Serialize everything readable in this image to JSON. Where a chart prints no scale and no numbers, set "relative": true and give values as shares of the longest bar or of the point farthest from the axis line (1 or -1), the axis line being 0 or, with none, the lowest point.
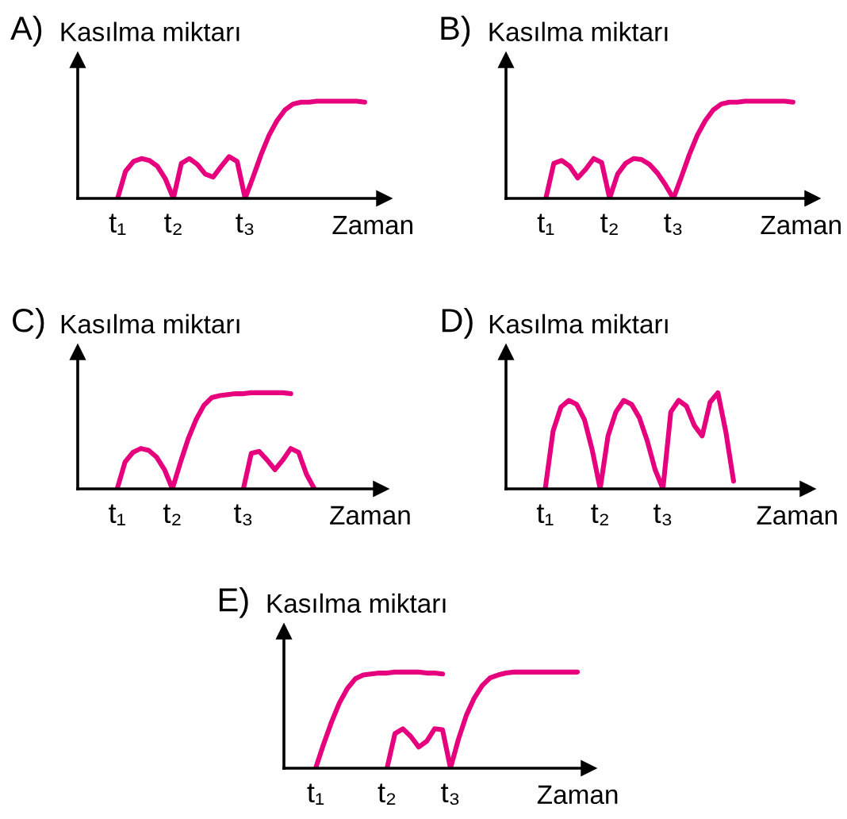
{
  "chart_data": [
    {
      "type": "line",
      "title": "A)",
      "ylabel": "Kasılma miktarı",
      "xlabel": "Zaman",
      "relative": true,
      "tick_labels": "x",
      "categories": [
        null,
        null,
        null,
        null,
        null,
        "t₁",
        null,
        null,
        null,
        null,
        null,
        null,
        "t₂",
        null,
        null,
        null,
        null,
        null,
        null,
        null,
        null,
        "t₃",
        null,
        null,
        null,
        null,
        null,
        null,
        null,
        null,
        null,
        null,
        null,
        null,
        null,
        null,
        null,
        null,
        null
      ],
      "series": [
        {
          "color": "#e6007e",
          "values": [
            null,
            null,
            null,
            null,
            null,
            0,
            0.28,
            0.38,
            0.41,
            0.39,
            0.33,
            0.2,
            0,
            0.36,
            0.41,
            0.35,
            0.25,
            0.22,
            0.33,
            0.43,
            0.38,
            0,
            0.22,
            0.45,
            0.65,
            0.8,
            0.91,
            0.97,
            0.99,
            0.99,
            1.0,
            1.0,
            1.0,
            1.0,
            1.0,
            1.0,
            0.99,
            null,
            null
          ]
        }
      ]
    },
    {
      "type": "line",
      "title": "B)",
      "ylabel": "Kasılma miktarı",
      "xlabel": "Zaman",
      "relative": true,
      "tick_labels": "x",
      "categories": [
        null,
        null,
        null,
        null,
        null,
        "t₁",
        null,
        null,
        null,
        null,
        null,
        null,
        null,
        "t₂",
        null,
        null,
        null,
        null,
        null,
        null,
        null,
        "t₃",
        null,
        null,
        null,
        null,
        null,
        null,
        null,
        null,
        null,
        null,
        null,
        null,
        null,
        null,
        null,
        null,
        null
      ],
      "series": [
        {
          "color": "#e6007e",
          "values": [
            null,
            null,
            null,
            null,
            null,
            0,
            0.36,
            0.39,
            0.33,
            0.21,
            0.3,
            0.41,
            0.37,
            0,
            0.25,
            0.36,
            0.41,
            0.4,
            0.35,
            0.26,
            0.14,
            0,
            0.22,
            0.45,
            0.65,
            0.8,
            0.91,
            0.97,
            0.99,
            0.99,
            1.0,
            1.0,
            1.0,
            1.0,
            1.0,
            1.0,
            0.99,
            null,
            null
          ]
        }
      ]
    },
    {
      "type": "line",
      "title": "C)",
      "ylabel": "Kasılma miktarı",
      "xlabel": "Zaman",
      "relative": true,
      "tick_labels": "x",
      "categories": [
        null,
        null,
        null,
        null,
        null,
        "t₁",
        null,
        null,
        null,
        null,
        null,
        null,
        "t₂",
        null,
        null,
        null,
        null,
        null,
        null,
        null,
        null,
        "t₃",
        null,
        null,
        null,
        null,
        null,
        null,
        null,
        null,
        null,
        null,
        null,
        null,
        null,
        null,
        null,
        null,
        null
      ],
      "series": [
        {
          "color": "#e6007e",
          "values": [
            null,
            null,
            null,
            null,
            null,
            0,
            0.28,
            0.38,
            0.42,
            0.4,
            0.33,
            0.2,
            0,
            0.27,
            0.52,
            0.72,
            0.87,
            0.95,
            0.97,
            0.98,
            0.99,
            0.99,
            1.0,
            1.0,
            1.0,
            1.0,
            1.0,
            0.99,
            null,
            null,
            null,
            null,
            null,
            null,
            null,
            null,
            null,
            null,
            null
          ]
        },
        {
          "color": "#e6007e",
          "values": [
            null,
            null,
            null,
            null,
            null,
            null,
            null,
            null,
            null,
            null,
            null,
            null,
            null,
            null,
            null,
            null,
            null,
            null,
            null,
            null,
            null,
            0,
            0.37,
            0.39,
            0.3,
            0.2,
            0.3,
            0.42,
            0.38,
            0.15,
            0,
            null,
            null,
            null,
            null,
            null,
            null,
            null,
            null
          ]
        }
      ]
    },
    {
      "type": "line",
      "title": "D)",
      "ylabel": "Kasılma miktarı",
      "xlabel": "Zaman",
      "relative": true,
      "tick_labels": "x",
      "categories": [
        null,
        null,
        null,
        null,
        null,
        "t₁",
        null,
        null,
        null,
        null,
        null,
        null,
        "t₂",
        null,
        null,
        null,
        null,
        null,
        null,
        null,
        "t₃",
        null,
        null,
        null,
        null,
        null,
        null,
        null,
        null,
        null,
        null,
        null,
        null,
        null,
        null,
        null,
        null,
        null,
        null
      ],
      "series": [
        {
          "color": "#e6007e",
          "values": [
            null,
            null,
            null,
            null,
            null,
            0,
            0.6,
            0.85,
            0.92,
            0.88,
            0.72,
            0.4,
            0,
            0.55,
            0.8,
            0.92,
            0.88,
            0.74,
            0.5,
            0.2,
            0,
            0.8,
            0.92,
            0.86,
            0.66,
            0.55,
            0.9,
            1.0,
            0.6,
            0.08,
            null,
            null,
            null,
            null,
            null,
            null,
            null,
            null,
            null
          ]
        }
      ]
    },
    {
      "type": "line",
      "title": "E)",
      "ylabel": "Kasılma miktarı",
      "xlabel": "Zaman",
      "relative": true,
      "tick_labels": "x",
      "categories": [
        null,
        null,
        null,
        null,
        "t₁",
        null,
        null,
        null,
        null,
        null,
        null,
        null,
        null,
        "t₂",
        null,
        null,
        null,
        null,
        null,
        null,
        null,
        "t₃",
        null,
        null,
        null,
        null,
        null,
        null,
        null,
        null,
        null,
        null,
        null,
        null,
        null,
        null,
        null,
        null,
        null
      ],
      "series": [
        {
          "color": "#e6007e",
          "values": [
            null,
            null,
            null,
            null,
            0,
            0.25,
            0.48,
            0.68,
            0.83,
            0.93,
            0.97,
            0.98,
            0.99,
            0.99,
            1.0,
            1.0,
            1.0,
            1.0,
            0.99,
            0.99,
            0.98,
            null,
            null,
            null,
            null,
            null,
            null,
            null,
            null,
            null,
            null,
            null,
            null,
            null,
            null,
            null,
            null,
            null,
            null
          ]
        },
        {
          "color": "#e6007e",
          "values": [
            null,
            null,
            null,
            null,
            null,
            null,
            null,
            null,
            null,
            null,
            null,
            null,
            null,
            0,
            0.36,
            0.41,
            0.33,
            0.22,
            0.28,
            0.41,
            0.4,
            0,
            0.3,
            0.55,
            0.73,
            0.86,
            0.94,
            0.97,
            0.99,
            1.0,
            1.0,
            1.0,
            1.0,
            1.0,
            1.0,
            1.0,
            1.0,
            1.0,
            null
          ]
        }
      ]
    }
  ]
}
